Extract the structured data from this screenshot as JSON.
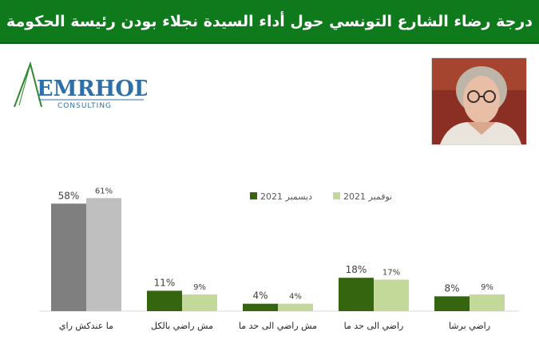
{
  "header": {
    "title": "درجة رضاء الشارع التونسي حول أداء السيدة نجلاء بودن رئيسة الحكومة"
  },
  "logo": {
    "name": "EMRHOD",
    "tagline": "CONSULTING"
  },
  "colors": {
    "header_bg": "#0f7a1c",
    "series_dec": "#35650f",
    "series_nov": "#c3d99a",
    "first_dec": "#7f7f7f",
    "first_nov": "#bfbfbf"
  },
  "chart_data": {
    "type": "bar",
    "title": "",
    "xlabel": "",
    "ylabel": "",
    "ylim": [
      0,
      65
    ],
    "grid": false,
    "legend_position": "top",
    "categories": [
      "ما عندكش راي",
      "مش راضي بالكل",
      "مش راضي الى حد ما",
      "راضي الى حد ما",
      "راضي برشا"
    ],
    "series": [
      {
        "name": "ديسمبر 2021",
        "values": [
          58,
          11,
          4,
          18,
          8
        ],
        "labels": [
          "58%",
          "11%",
          "4%",
          "18%",
          "8%"
        ]
      },
      {
        "name": "نوفمبر 2021",
        "values": [
          61,
          9,
          4,
          17,
          9
        ],
        "labels": [
          "61%",
          "9%",
          "4%",
          "17%",
          "9%"
        ]
      }
    ]
  }
}
